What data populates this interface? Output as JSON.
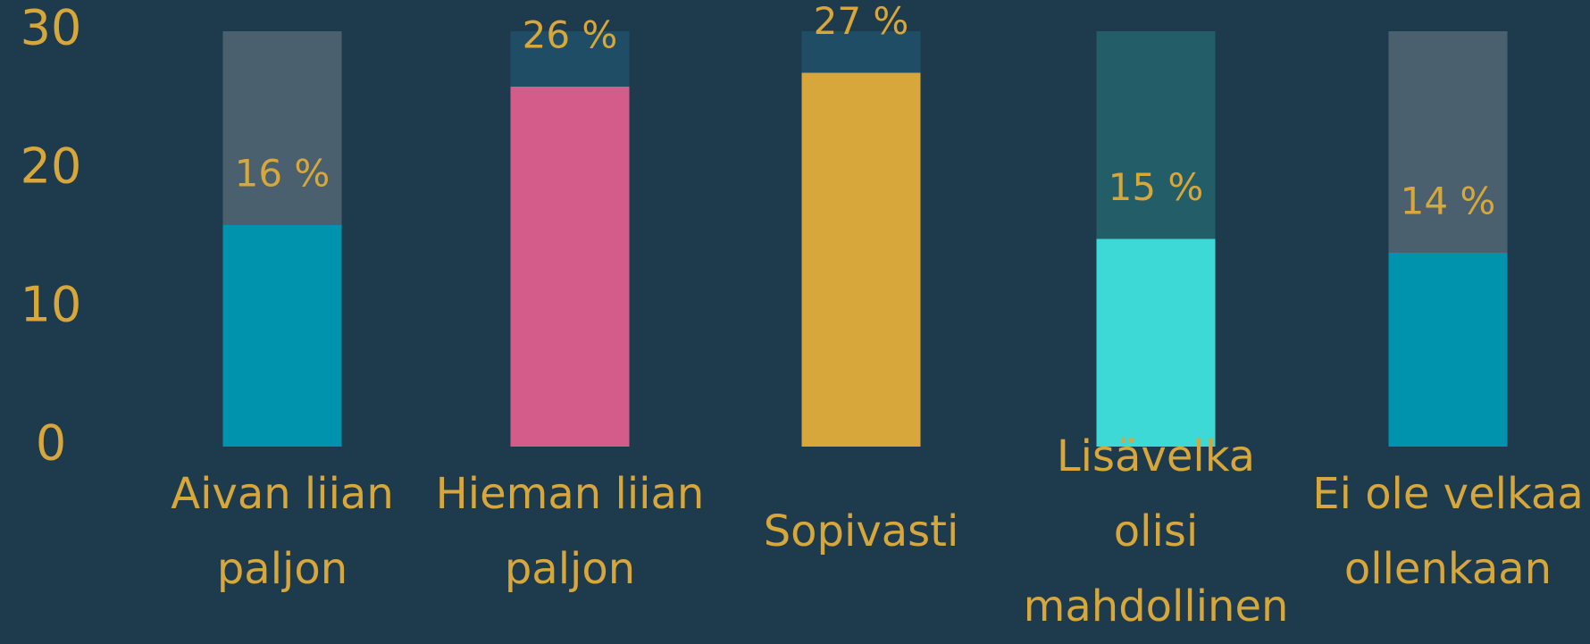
{
  "chart_data": {
    "type": "bar",
    "categories": [
      "Aivan liian paljon",
      "Hieman liian paljon",
      "Sopivasti",
      "Lisävelka olisi mahdollinen",
      "Ei ole velkaa ollenkaan"
    ],
    "values": [
      16,
      26,
      27,
      15,
      14
    ],
    "value_labels": [
      "16 %",
      "26 %",
      "27 %",
      "15 %",
      "14 %"
    ],
    "colors": [
      "#0093ad",
      "#d45c8a",
      "#d8a73b",
      "#3dd9d6",
      "#0093ad"
    ],
    "track_colors": [
      "#4a606e",
      "#1f4d65",
      "#1f4d65",
      "#225d68",
      "#4a606e"
    ],
    "ylim": [
      0,
      30
    ],
    "yticks": [
      0,
      10,
      20,
      30
    ]
  }
}
